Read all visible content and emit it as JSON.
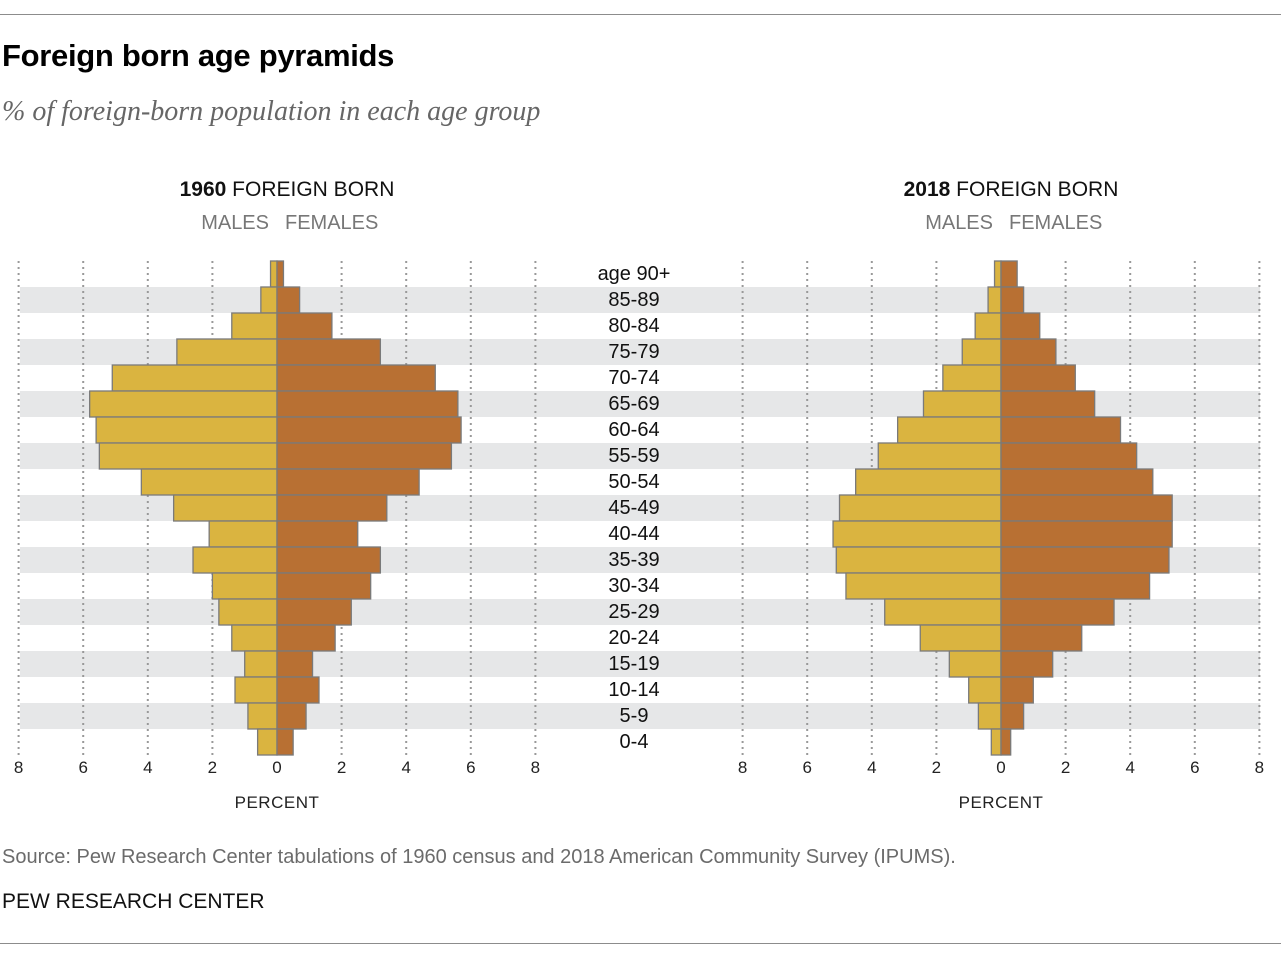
{
  "title": "Foreign born age pyramids",
  "subtitle": "% of foreign-born population in each age group",
  "source": "Source: Pew Research Center tabulations of 1960 census and 2018 American Community Survey (IPUMS).",
  "credit": "PEW RESEARCH CENTER",
  "colors": {
    "males": "#dab440",
    "females": "#b87033",
    "band": "#e6e7e8",
    "stroke": "#7a7a7a"
  },
  "chart_data": [
    {
      "type": "bar",
      "title_bold": "1960",
      "title_rest": " FOREIGN BORN",
      "xlabel": "PERCENT",
      "xlim": [
        -8,
        8
      ],
      "xticks": [
        8,
        6,
        4,
        2,
        0,
        2,
        4,
        6,
        8
      ],
      "categories": [
        "age 90+",
        "85-89",
        "80-84",
        "75-79",
        "70-74",
        "65-69",
        "60-64",
        "55-59",
        "50-54",
        "45-49",
        "40-44",
        "35-39",
        "30-34",
        "25-29",
        "20-24",
        "15-19",
        "10-14",
        "5-9",
        "0-4"
      ],
      "series": [
        {
          "name": "MALES",
          "values": [
            0.2,
            0.5,
            1.4,
            3.1,
            5.1,
            5.8,
            5.6,
            5.5,
            4.2,
            3.2,
            2.1,
            2.6,
            2.0,
            1.8,
            1.4,
            1.0,
            1.3,
            0.9,
            0.6
          ]
        },
        {
          "name": "FEMALES",
          "values": [
            0.2,
            0.7,
            1.7,
            3.2,
            4.9,
            5.6,
            5.7,
            5.4,
            4.4,
            3.4,
            2.5,
            3.2,
            2.9,
            2.3,
            1.8,
            1.1,
            1.3,
            0.9,
            0.5
          ]
        }
      ]
    },
    {
      "type": "bar",
      "title_bold": "2018",
      "title_rest": " FOREIGN BORN",
      "xlabel": "PERCENT",
      "xlim": [
        -8,
        8
      ],
      "xticks": [
        8,
        6,
        4,
        2,
        0,
        2,
        4,
        6,
        8
      ],
      "categories": [
        "age 90+",
        "85-89",
        "80-84",
        "75-79",
        "70-74",
        "65-69",
        "60-64",
        "55-59",
        "50-54",
        "45-49",
        "40-44",
        "35-39",
        "30-34",
        "25-29",
        "20-24",
        "15-19",
        "10-14",
        "5-9",
        "0-4"
      ],
      "series": [
        {
          "name": "MALES",
          "values": [
            0.2,
            0.4,
            0.8,
            1.2,
            1.8,
            2.4,
            3.2,
            3.8,
            4.5,
            5.0,
            5.2,
            5.1,
            4.8,
            3.6,
            2.5,
            1.6,
            1.0,
            0.7,
            0.3
          ]
        },
        {
          "name": "FEMALES",
          "values": [
            0.5,
            0.7,
            1.2,
            1.7,
            2.3,
            2.9,
            3.7,
            4.2,
            4.7,
            5.3,
            5.3,
            5.2,
            4.6,
            3.5,
            2.5,
            1.6,
            1.0,
            0.7,
            0.3
          ]
        }
      ]
    }
  ]
}
